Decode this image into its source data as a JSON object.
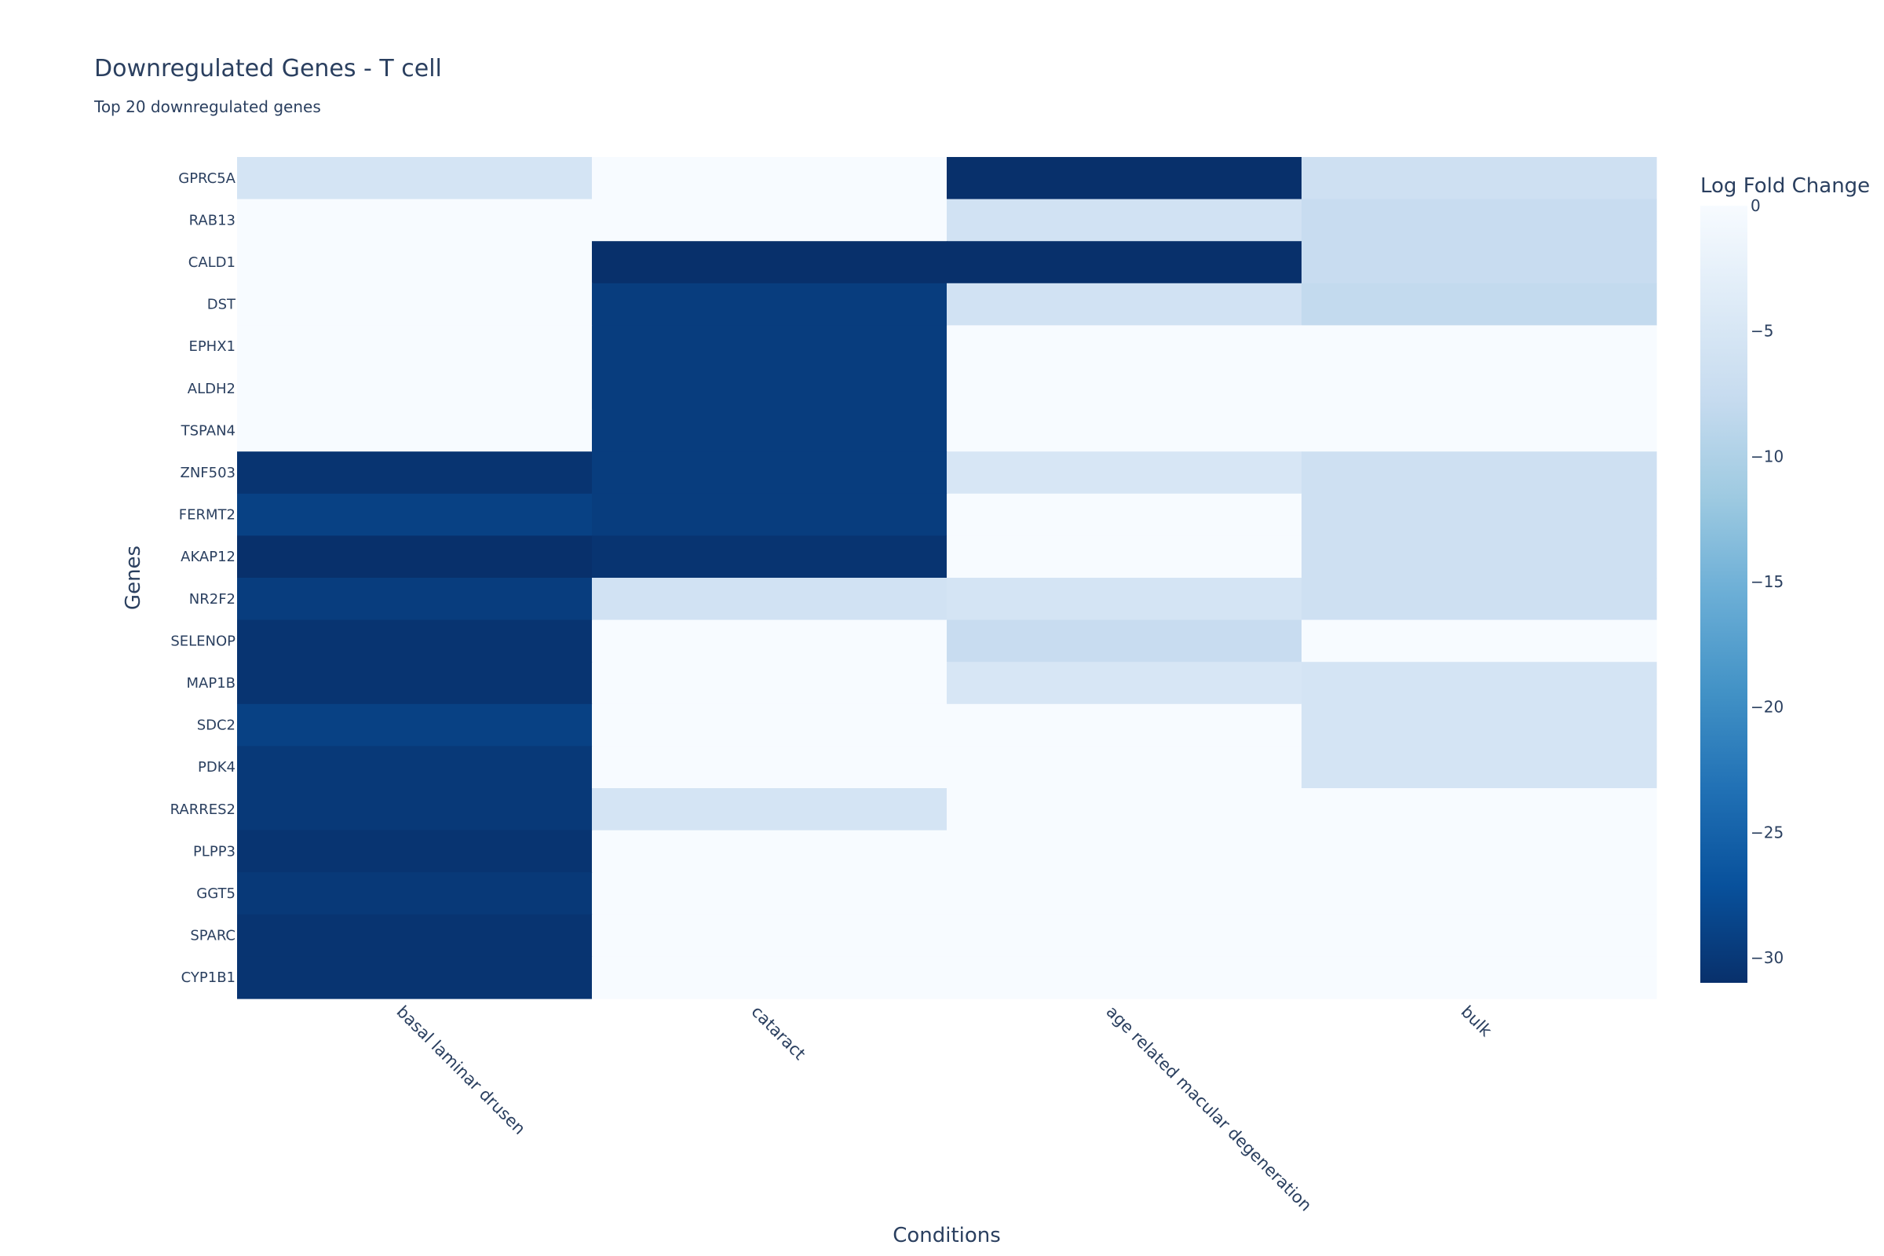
{
  "chart_data": {
    "type": "heatmap",
    "title": "Downregulated Genes - T cell",
    "subtitle": "Top 20 downregulated genes",
    "xlabel": "Conditions",
    "ylabel": "Genes",
    "x": [
      "basal laminar drusen",
      "cataract",
      "age related macular degeneration",
      "bulk"
    ],
    "y": [
      "GPRC5A",
      "RAB13",
      "CALD1",
      "DST",
      "EPHX1",
      "ALDH2",
      "TSPAN4",
      "ZNF503",
      "FERMT2",
      "AKAP12",
      "NR2F2",
      "SELENOP",
      "MAP1B",
      "SDC2",
      "PDK4",
      "RARRES2",
      "PLPP3",
      "GGT5",
      "SPARC",
      "CYP1B1"
    ],
    "z": [
      [
        -5.5,
        0,
        -31,
        -6.5
      ],
      [
        0,
        0,
        -6,
        -7.5
      ],
      [
        0,
        -31,
        -31,
        -7.5
      ],
      [
        0,
        -29.5,
        -6,
        -8
      ],
      [
        0,
        -29.5,
        0,
        0
      ],
      [
        0,
        -29.5,
        0,
        0
      ],
      [
        0,
        -29.5,
        0,
        0
      ],
      [
        -30.5,
        -29.5,
        -5,
        -6.5
      ],
      [
        -29,
        -29.5,
        0,
        -6.5
      ],
      [
        -31,
        -30.5,
        0,
        -6.5
      ],
      [
        -29.5,
        -6,
        -5.5,
        -6.5
      ],
      [
        -30.5,
        0,
        -7.5,
        0
      ],
      [
        -30.5,
        0,
        -5,
        -5.5
      ],
      [
        -29,
        0,
        0,
        -5.5
      ],
      [
        -30,
        0,
        0,
        -5.5
      ],
      [
        -30,
        -5.5,
        0,
        0
      ],
      [
        -30.5,
        0,
        0,
        0
      ],
      [
        -30,
        0,
        0,
        0
      ],
      [
        -30.5,
        0,
        0,
        0
      ],
      [
        -30.5,
        0,
        0,
        0
      ]
    ],
    "zlim": [
      -31,
      0
    ],
    "colorscale": "Blues (reversed)",
    "colorbar_title": "Log Fold Change",
    "colorbar_ticks": [
      0,
      -5,
      -10,
      -15,
      -20,
      -25,
      -30
    ],
    "colorbar_tick_labels": [
      "0",
      "−5",
      "−10",
      "−15",
      "−20",
      "−25",
      "−30"
    ],
    "legend_position": "right",
    "grid": false
  }
}
